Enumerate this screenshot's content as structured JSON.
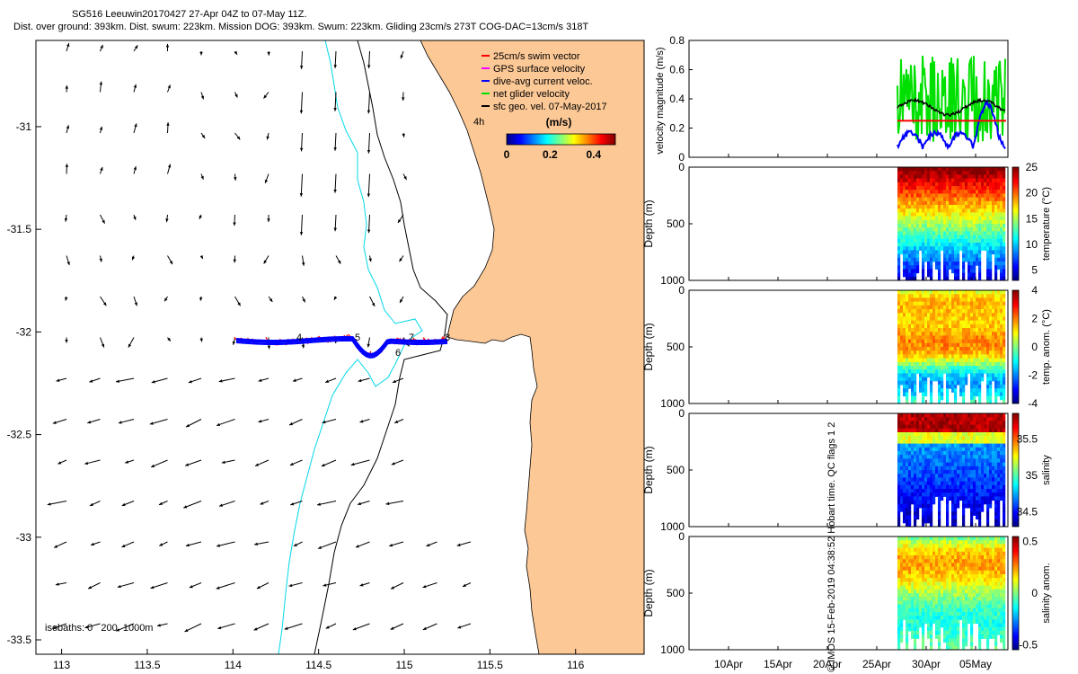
{
  "header": {
    "line1": "SG516 Leeuwin20170427 27-Apr 04Z to 07-May 11Z.",
    "line2": "Dist. over ground: 393km. Dist. swum: 223km. Mission DOG: 393km. Swum: 223km. Gliding 23cm/s 273T COG-DAC=13cm/s 318T"
  },
  "credit": "© IMOS 15-Feb-2019 04:38:52 Hobart time. QC flags 1  2",
  "colors": {
    "land": "#fcc896",
    "coast": "#000000",
    "isobath_200": "#00d8e8",
    "isobath_1000": "#000000",
    "swim": "#ff0000",
    "gps": "#ff00ff",
    "dac": "#0000ff",
    "net": "#00e000",
    "geo": "#000000"
  },
  "chart_data": [
    {
      "type": "map",
      "xticks": [
        "113",
        "113.5",
        "114",
        "114.5",
        "115",
        "115.5",
        "116"
      ],
      "yticks": [
        "-31",
        "-31.5",
        "-32",
        "-32.5",
        "-33",
        "-33.5"
      ],
      "xlim": [
        112.85,
        116.4
      ],
      "ylim": [
        -33.57,
        -30.58
      ],
      "legend": {
        "position": "top-right",
        "items": [
          {
            "label": "25cm/s swim vector",
            "color_key": "swim"
          },
          {
            "label": "GPS surface velocity",
            "color_key": "gps"
          },
          {
            "label": "dive-avg current veloc.",
            "color_key": "dac"
          },
          {
            "label": "net glider velocity",
            "color_key": "net"
          },
          {
            "label": "sfc geo. vel. 07-May-2017",
            "color_key": "geo"
          }
        ],
        "scale_label": "4h"
      },
      "colorbar": {
        "label": "(m/s)",
        "ticks": [
          "0",
          "0.2",
          "0.4"
        ],
        "range": [
          0,
          0.5
        ]
      },
      "isobaths_label": "isobaths: 0   200  1000m",
      "track_day_labels": [
        "4",
        "5",
        "6",
        "7",
        "8"
      ]
    },
    {
      "type": "line",
      "ylabel": "velocity magnitude (m/s)",
      "yticks": [
        "0",
        "0.2",
        "0.4",
        "0.6",
        "0.8"
      ],
      "ylim": [
        0,
        0.8
      ],
      "series_colors": [
        "net",
        "dac",
        "geo",
        "swim"
      ]
    },
    {
      "type": "heatmap",
      "ylabel": "Depth (m)",
      "yticks": [
        "0",
        "500",
        "1000"
      ],
      "cbar_label": "temperature (°C)",
      "cbar_ticks": [
        "25",
        "20",
        "15",
        "10",
        "5"
      ],
      "cbar_range": [
        3,
        25
      ]
    },
    {
      "type": "heatmap",
      "ylabel": "Depth (m)",
      "yticks": [
        "0",
        "500",
        "1000"
      ],
      "cbar_label": "temp. anom. (°C)",
      "cbar_ticks": [
        "4",
        "2",
        "0",
        "-2",
        "-4"
      ],
      "cbar_range": [
        -4,
        4
      ]
    },
    {
      "type": "heatmap",
      "ylabel": "Depth (m)",
      "yticks": [
        "0",
        "500",
        "1000"
      ],
      "cbar_label": "salinity",
      "cbar_ticks": [
        "35.5",
        "35",
        "34.5"
      ],
      "cbar_range": [
        34.3,
        35.85
      ]
    },
    {
      "type": "heatmap",
      "ylabel": "Depth (m)",
      "yticks": [
        "0",
        "500",
        "1000"
      ],
      "cbar_label": "salinity anom.",
      "cbar_ticks": [
        "0.5",
        "0",
        "-0.5"
      ],
      "cbar_range": [
        -0.55,
        0.55
      ]
    },
    {
      "type": "time_axis",
      "xticks": [
        "10Apr",
        "15Apr",
        "20Apr",
        "25Apr",
        "30Apr",
        "05May"
      ]
    }
  ]
}
